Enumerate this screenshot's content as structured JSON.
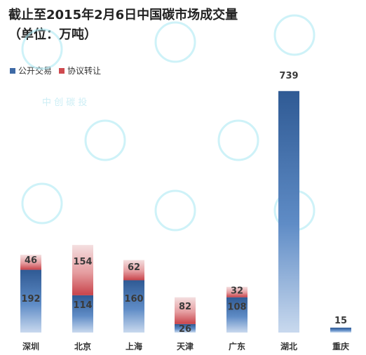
{
  "chart_data": {
    "type": "bar",
    "stacked": true,
    "title": "截止至2015年2月6日中国碳市场成交量",
    "subtitle": "（单位：万吨）",
    "categories": [
      "深圳",
      "北京",
      "上海",
      "天津",
      "广东",
      "湖北",
      "重庆"
    ],
    "series": [
      {
        "name": "公开交易",
        "values": [
          192,
          114,
          160,
          26,
          108,
          739,
          15
        ],
        "color": "#3e6aa6"
      },
      {
        "name": "协议转让",
        "values": [
          46,
          154,
          62,
          82,
          32,
          0,
          0
        ],
        "color": "#cf4a4f"
      }
    ],
    "legend_position": "top-left",
    "grid": false,
    "ylim": [
      0,
      760
    ]
  },
  "watermark": {
    "text": "中 创 碳 投"
  }
}
